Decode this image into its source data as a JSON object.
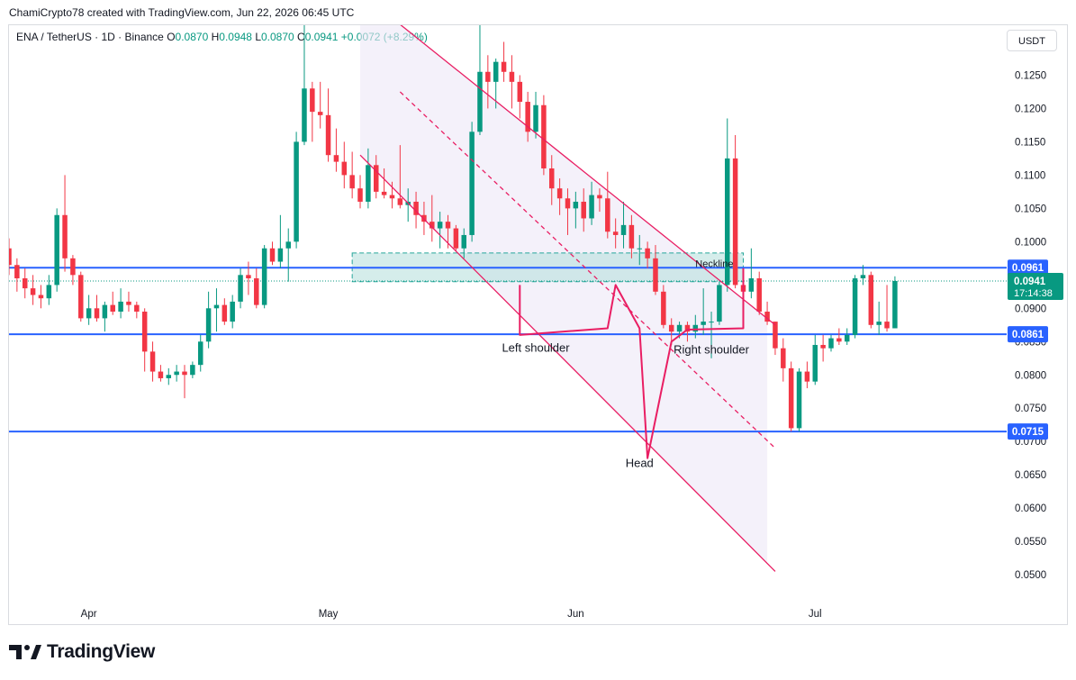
{
  "header": {
    "credit": "ChamiCrypto78 created with TradingView.com, Jun 22, 2026 06:45 UTC",
    "symbol": "ENA / TetherUS · 1D · Binance",
    "o_label": "O",
    "o_value": "0.0870",
    "h_label": "H",
    "h_value": "0.0948",
    "l_label": "L",
    "l_value": "0.0870",
    "c_label": "C",
    "c_value": "0.0941",
    "change": "+0.0072 (+8.29%)"
  },
  "currency_button": "USDT",
  "brand": "TradingView",
  "colors": {
    "up": "#089981",
    "down": "#f23645",
    "level_line": "#2962ff",
    "channel": "#e91e63",
    "zone_fill": "#b2dfdb",
    "zone_border": "#26a69a"
  },
  "chart_data": {
    "type": "candlestick",
    "y_axis": {
      "range": [
        0.0465,
        0.1325
      ],
      "ticks": [
        "0.1250",
        "0.1200",
        "0.1150",
        "0.1100",
        "0.1050",
        "0.1000",
        "0.0950",
        "0.0900",
        "0.0850",
        "0.0800",
        "0.0750",
        "0.0700",
        "0.0650",
        "0.0600",
        "0.0550",
        "0.0500"
      ]
    },
    "x_axis": {
      "range": [
        "2026-03-22",
        "2026-07-25"
      ],
      "ticks": [
        {
          "label": "Apr",
          "date": "2026-04-01"
        },
        {
          "label": "May",
          "date": "2026-05-01"
        },
        {
          "label": "Jun",
          "date": "2026-06-01"
        },
        {
          "label": "Jul",
          "date": "2026-07-01"
        }
      ]
    },
    "first_date": "2026-03-21",
    "candles": [
      [
        0.101,
        0.1065,
        0.098,
        0.099
      ],
      [
        0.099,
        0.1005,
        0.095,
        0.0965
      ],
      [
        0.0965,
        0.0975,
        0.0925,
        0.0945
      ],
      [
        0.0945,
        0.096,
        0.0915,
        0.093
      ],
      [
        0.093,
        0.095,
        0.0905,
        0.092
      ],
      [
        0.092,
        0.0935,
        0.09,
        0.0915
      ],
      [
        0.0915,
        0.095,
        0.0905,
        0.0935
      ],
      [
        0.0935,
        0.105,
        0.0925,
        0.104
      ],
      [
        0.104,
        0.11,
        0.0955,
        0.0975
      ],
      [
        0.0975,
        0.098,
        0.0935,
        0.095
      ],
      [
        0.095,
        0.0955,
        0.088,
        0.0885
      ],
      [
        0.0885,
        0.092,
        0.0875,
        0.09
      ],
      [
        0.09,
        0.092,
        0.088,
        0.0885
      ],
      [
        0.0885,
        0.091,
        0.0865,
        0.0905
      ],
      [
        0.0905,
        0.0925,
        0.089,
        0.0895
      ],
      [
        0.0895,
        0.093,
        0.0885,
        0.091
      ],
      [
        0.091,
        0.0925,
        0.0895,
        0.0905
      ],
      [
        0.0905,
        0.091,
        0.0885,
        0.0895
      ],
      [
        0.0895,
        0.09,
        0.0805,
        0.0835
      ],
      [
        0.0835,
        0.085,
        0.079,
        0.0805
      ],
      [
        0.0805,
        0.0815,
        0.079,
        0.0795
      ],
      [
        0.0795,
        0.081,
        0.0785,
        0.08
      ],
      [
        0.08,
        0.0815,
        0.079,
        0.0805
      ],
      [
        0.0805,
        0.0815,
        0.0765,
        0.08
      ],
      [
        0.08,
        0.082,
        0.0795,
        0.0815
      ],
      [
        0.0815,
        0.086,
        0.0805,
        0.085
      ],
      [
        0.085,
        0.0925,
        0.084,
        0.09
      ],
      [
        0.09,
        0.093,
        0.0865,
        0.0905
      ],
      [
        0.0905,
        0.0915,
        0.0875,
        0.088
      ],
      [
        0.088,
        0.092,
        0.087,
        0.091
      ],
      [
        0.091,
        0.096,
        0.09,
        0.095
      ],
      [
        0.095,
        0.097,
        0.092,
        0.0945
      ],
      [
        0.0945,
        0.096,
        0.09,
        0.0905
      ],
      [
        0.0905,
        0.0995,
        0.09,
        0.099
      ],
      [
        0.099,
        0.1,
        0.0965,
        0.097
      ],
      [
        0.097,
        0.104,
        0.096,
        0.099
      ],
      [
        0.099,
        0.102,
        0.094,
        0.1
      ],
      [
        0.1,
        0.1165,
        0.099,
        0.115
      ],
      [
        0.115,
        0.133,
        0.1145,
        0.123
      ],
      [
        0.123,
        0.124,
        0.115,
        0.1195
      ],
      [
        0.1195,
        0.124,
        0.117,
        0.119
      ],
      [
        0.119,
        0.123,
        0.112,
        0.113
      ],
      [
        0.113,
        0.117,
        0.1105,
        0.112
      ],
      [
        0.112,
        0.115,
        0.108,
        0.11
      ],
      [
        0.11,
        0.1135,
        0.1065,
        0.108
      ],
      [
        0.108,
        0.11,
        0.105,
        0.106
      ],
      [
        0.106,
        0.114,
        0.105,
        0.1115
      ],
      [
        0.1115,
        0.113,
        0.1065,
        0.1075
      ],
      [
        0.1075,
        0.111,
        0.1065,
        0.107
      ],
      [
        0.107,
        0.109,
        0.105,
        0.1065
      ],
      [
        0.1065,
        0.1145,
        0.105,
        0.1055
      ],
      [
        0.1055,
        0.108,
        0.103,
        0.106
      ],
      [
        0.106,
        0.1075,
        0.102,
        0.104
      ],
      [
        0.104,
        0.106,
        0.101,
        0.103
      ],
      [
        0.103,
        0.107,
        0.1,
        0.102
      ],
      [
        0.102,
        0.1045,
        0.099,
        0.103
      ],
      [
        0.103,
        0.104,
        0.099,
        0.102
      ],
      [
        0.102,
        0.1025,
        0.0985,
        0.099
      ],
      [
        0.099,
        0.102,
        0.0975,
        0.101
      ],
      [
        0.101,
        0.118,
        0.1,
        0.1165
      ],
      [
        0.1165,
        0.135,
        0.116,
        0.1255
      ],
      [
        0.1255,
        0.128,
        0.12,
        0.124
      ],
      [
        0.124,
        0.1275,
        0.12,
        0.127
      ],
      [
        0.127,
        0.13,
        0.124,
        0.1255
      ],
      [
        0.1255,
        0.128,
        0.12,
        0.124
      ],
      [
        0.124,
        0.125,
        0.1185,
        0.121
      ],
      [
        0.121,
        0.1225,
        0.115,
        0.1165
      ],
      [
        0.1165,
        0.1225,
        0.1155,
        0.1205
      ],
      [
        0.1205,
        0.122,
        0.11,
        0.111
      ],
      [
        0.111,
        0.113,
        0.1055,
        0.108
      ],
      [
        0.108,
        0.1095,
        0.104,
        0.1065
      ],
      [
        0.1065,
        0.108,
        0.101,
        0.105
      ],
      [
        0.105,
        0.1075,
        0.102,
        0.106
      ],
      [
        0.106,
        0.108,
        0.1015,
        0.1035
      ],
      [
        0.1035,
        0.109,
        0.1025,
        0.107
      ],
      [
        0.107,
        0.108,
        0.1045,
        0.1065
      ],
      [
        0.1065,
        0.1105,
        0.1005,
        0.1015
      ],
      [
        0.1015,
        0.1035,
        0.099,
        0.101
      ],
      [
        0.101,
        0.106,
        0.099,
        0.1025
      ],
      [
        0.1025,
        0.104,
        0.0975,
        0.099
      ],
      [
        0.099,
        0.101,
        0.0965,
        0.099
      ],
      [
        0.099,
        0.1,
        0.096,
        0.0975
      ],
      [
        0.0975,
        0.0995,
        0.092,
        0.0925
      ],
      [
        0.0925,
        0.0935,
        0.087,
        0.0875
      ],
      [
        0.0875,
        0.0885,
        0.0845,
        0.0865
      ],
      [
        0.0865,
        0.088,
        0.0855,
        0.0875
      ],
      [
        0.0875,
        0.088,
        0.085,
        0.0865
      ],
      [
        0.0865,
        0.089,
        0.0855,
        0.0875
      ],
      [
        0.0875,
        0.093,
        0.086,
        0.088
      ],
      [
        0.088,
        0.0895,
        0.0825,
        0.088
      ],
      [
        0.088,
        0.094,
        0.0875,
        0.0935
      ],
      [
        0.0935,
        0.1185,
        0.0925,
        0.1125
      ],
      [
        0.1125,
        0.116,
        0.093,
        0.0935
      ],
      [
        0.0935,
        0.096,
        0.091,
        0.0925
      ],
      [
        0.0925,
        0.099,
        0.0915,
        0.0945
      ],
      [
        0.0945,
        0.0955,
        0.089,
        0.0895
      ],
      [
        0.0895,
        0.091,
        0.0875,
        0.088
      ],
      [
        0.088,
        0.088,
        0.083,
        0.084
      ],
      [
        0.084,
        0.0855,
        0.079,
        0.081
      ],
      [
        0.081,
        0.082,
        0.0715,
        0.072
      ],
      [
        0.072,
        0.081,
        0.0715,
        0.0805
      ],
      [
        0.0805,
        0.082,
        0.078,
        0.079
      ],
      [
        0.079,
        0.086,
        0.0785,
        0.0845
      ],
      [
        0.0845,
        0.086,
        0.082,
        0.084
      ],
      [
        0.084,
        0.086,
        0.0835,
        0.0855
      ],
      [
        0.0855,
        0.087,
        0.0845,
        0.085
      ],
      [
        0.085,
        0.087,
        0.0845,
        0.086
      ],
      [
        0.086,
        0.095,
        0.0855,
        0.0945
      ],
      [
        0.0945,
        0.0965,
        0.0935,
        0.095
      ],
      [
        0.095,
        0.0955,
        0.087,
        0.0875
      ],
      [
        0.0875,
        0.091,
        0.086,
        0.088
      ],
      [
        0.088,
        0.0935,
        0.0865,
        0.087
      ],
      [
        0.087,
        0.0948,
        0.087,
        0.0941
      ]
    ],
    "horizontal_levels": [
      "0.0961",
      "0.0861",
      "0.0715"
    ],
    "current_price": "0.0941",
    "countdown": "17:14:38",
    "neckline_zone": {
      "low": 0.094,
      "high": 0.0983,
      "start": "2026-05-04",
      "end": "2026-06-22"
    },
    "descending_channel": {
      "upper_line": [
        [
          "2026-05-07",
          0.1355
        ],
        [
          "2026-06-26",
          0.0875
        ]
      ],
      "middle_line": [
        [
          "2026-05-10",
          0.1225
        ],
        [
          "2026-06-26",
          0.069
        ]
      ],
      "lower_line": [
        [
          "2026-05-05",
          0.113
        ],
        [
          "2026-06-26",
          0.0505
        ]
      ],
      "shade_end": "2026-06-25"
    },
    "pattern_annotations": [
      {
        "label": "Neckline",
        "date": "2026-06-16",
        "value": 0.0962
      },
      {
        "label": "Left shoulder",
        "date": "2026-05-27",
        "value": 0.0835
      },
      {
        "label": "Right shoulder",
        "date": "2026-06-18",
        "value": 0.0832
      },
      {
        "label": "Head",
        "date": "2026-06-09",
        "value": 0.0662
      }
    ],
    "head_and_shoulders_path": [
      [
        "2026-05-25",
        0.0935
      ],
      [
        "2026-05-25",
        0.086
      ],
      [
        "2026-06-05",
        0.087
      ],
      [
        "2026-06-06",
        0.0935
      ],
      [
        "2026-06-09",
        0.087
      ],
      [
        "2026-06-10",
        0.0675
      ],
      [
        "2026-06-13",
        0.085
      ],
      [
        "2026-06-15",
        0.0868
      ],
      [
        "2026-06-22",
        0.087
      ],
      [
        "2026-06-22",
        0.096
      ]
    ]
  }
}
